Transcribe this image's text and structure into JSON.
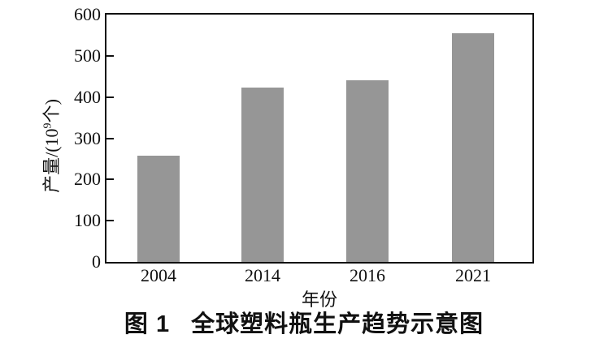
{
  "figure": {
    "caption_label": "图 1",
    "caption_title": "全球塑料瓶生产趋势示意图"
  },
  "chart_data": {
    "type": "bar",
    "title": "图 1 全球塑料瓶生产趋势示意图",
    "categories": [
      "2004",
      "2014",
      "2016",
      "2021"
    ],
    "values": [
      257,
      422,
      440,
      554
    ],
    "xlabel": "年份",
    "ylabel": "产量/(10⁹个)",
    "ylabel_parts": {
      "pre": "产量/(10",
      "sup": "9",
      "post": "个)"
    },
    "ylim": [
      0,
      600
    ],
    "yticks": [
      0,
      100,
      200,
      300,
      400,
      500,
      600
    ],
    "grid": false,
    "legend": "none",
    "bar_color": "#969696",
    "axis_color": "#111111"
  }
}
